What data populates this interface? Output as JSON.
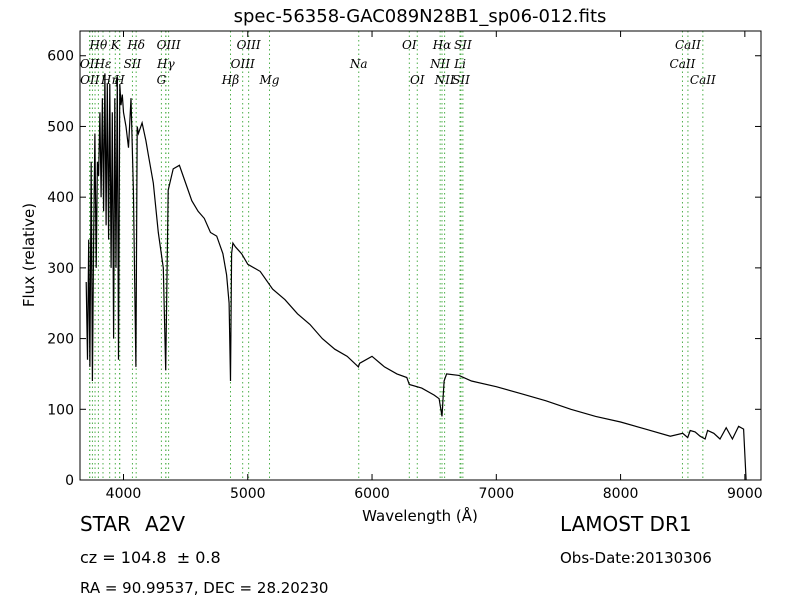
{
  "chart_data": {
    "type": "line",
    "title": "spec-56358-GAC089N28B1_sp06-012.fits",
    "xlabel": "Wavelength (Å)",
    "ylabel": "Flux (relative)",
    "xlim": [
      3650,
      9130
    ],
    "ylim": [
      0,
      635
    ],
    "xticks": [
      4000,
      5000,
      6000,
      7000,
      8000,
      9000
    ],
    "yticks": [
      0,
      100,
      200,
      300,
      400,
      500,
      600
    ],
    "grid": false,
    "line_color": "#000000",
    "marker_color": "#4daf4a",
    "series": [
      {
        "x": [
          3700,
          3710,
          3720,
          3730,
          3740,
          3750,
          3760,
          3770,
          3780,
          3790,
          3800,
          3810,
          3820,
          3830,
          3840,
          3850,
          3860,
          3870,
          3880,
          3890,
          3900,
          3910,
          3920,
          3930,
          3940,
          3950,
          3960,
          3970,
          3980,
          3990,
          4000,
          4020,
          4040,
          4060,
          4080,
          4100,
          4110,
          4120,
          4150,
          4180,
          4200,
          4240,
          4280,
          4320,
          4340,
          4360,
          4400,
          4450,
          4500,
          4550,
          4600,
          4650,
          4700,
          4750,
          4800,
          4830,
          4850,
          4861,
          4870,
          4880,
          4900,
          4950,
          5000,
          5100,
          5200,
          5300,
          5400,
          5500,
          5600,
          5700,
          5800,
          5890,
          5900,
          6000,
          6100,
          6200,
          6280,
          6300,
          6400,
          6500,
          6540,
          6563,
          6580,
          6600,
          6700,
          6800,
          7000,
          7200,
          7400,
          7600,
          7800,
          8000,
          8200,
          8400,
          8500,
          8540,
          8560,
          8600,
          8640,
          8680,
          8700,
          8750,
          8800,
          8850,
          8900,
          8950,
          8990,
          9010
        ],
        "y": [
          280,
          170,
          340,
          160,
          450,
          140,
          350,
          490,
          300,
          450,
          430,
          520,
          400,
          540,
          380,
          575,
          360,
          560,
          340,
          560,
          300,
          520,
          200,
          540,
          300,
          570,
          170,
          560,
          530,
          545,
          520,
          500,
          470,
          540,
          410,
          160,
          500,
          490,
          505,
          480,
          460,
          420,
          350,
          300,
          155,
          410,
          440,
          445,
          420,
          395,
          380,
          370,
          350,
          345,
          320,
          290,
          250,
          140,
          320,
          335,
          330,
          320,
          305,
          295,
          270,
          255,
          235,
          220,
          200,
          185,
          175,
          160,
          165,
          175,
          160,
          150,
          145,
          135,
          130,
          120,
          115,
          90,
          140,
          150,
          148,
          140,
          132,
          122,
          112,
          100,
          90,
          82,
          72,
          62,
          66,
          60,
          70,
          68,
          62,
          58,
          70,
          66,
          58,
          74,
          58,
          76,
          72,
          0
        ]
      }
    ],
    "lines": [
      {
        "label": "Hθ",
        "wave": 3798,
        "row": 0
      },
      {
        "label": "K",
        "wave": 3934,
        "row": 0
      },
      {
        "label": "Hδ",
        "wave": 4102,
        "row": 0
      },
      {
        "label": "OIII",
        "wave": 4363,
        "row": 0
      },
      {
        "label": "OIII",
        "wave": 5007,
        "row": 0
      },
      {
        "label": "OI",
        "wave": 6300,
        "row": 0
      },
      {
        "label": "Hα",
        "wave": 6563,
        "row": 0
      },
      {
        "label": "SII",
        "wave": 6731,
        "row": 0
      },
      {
        "label": "CaII",
        "wave": 8542,
        "row": 0
      },
      {
        "label": "OII",
        "wave": 3727,
        "row": 1
      },
      {
        "label": "Hε",
        "wave": 3835,
        "row": 1
      },
      {
        "label": "SII",
        "wave": 4072,
        "row": 1
      },
      {
        "label": "Hγ",
        "wave": 4341,
        "row": 1
      },
      {
        "label": "OIII",
        "wave": 4959,
        "row": 1
      },
      {
        "label": "Na",
        "wave": 5893,
        "row": 1
      },
      {
        "label": "NII",
        "wave": 6548,
        "row": 1
      },
      {
        "label": "Li",
        "wave": 6708,
        "row": 1
      },
      {
        "label": "CaII",
        "wave": 8498,
        "row": 1
      },
      {
        "label": "OII",
        "wave": 3729,
        "row": 2
      },
      {
        "label": "Hη",
        "wave": 3889,
        "row": 2
      },
      {
        "label": "H",
        "wave": 3968,
        "row": 2
      },
      {
        "label": "G",
        "wave": 4305,
        "row": 2
      },
      {
        "label": "Hβ",
        "wave": 4861,
        "row": 2
      },
      {
        "label": "Mg",
        "wave": 5175,
        "row": 2
      },
      {
        "label": "OI",
        "wave": 6364,
        "row": 2
      },
      {
        "label": "NII",
        "wave": 6584,
        "row": 2
      },
      {
        "label": "SII",
        "wave": 6716,
        "row": 2
      },
      {
        "label": "CaII",
        "wave": 8662,
        "row": 2
      }
    ],
    "extra_marker_waves": [
      3750,
      3771,
      3970,
      4340
    ]
  },
  "info": {
    "class": "STAR",
    "subclass": "A2V",
    "survey": "LAMOST DR1",
    "cz": "cz = 104.8  ± 0.8",
    "obs_date": "Obs-Date:20130306",
    "radec": "RA = 90.99537, DEC = 28.20230"
  }
}
